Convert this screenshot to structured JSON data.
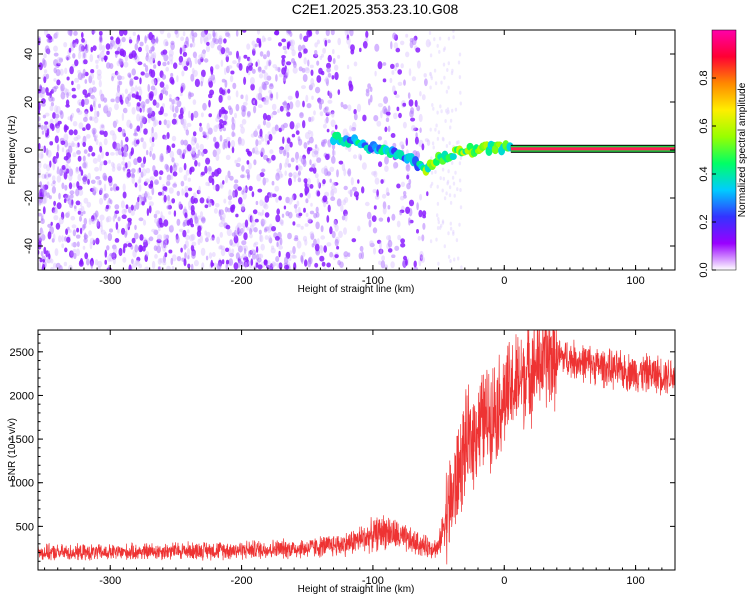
{
  "title": "C2E1.2025.353.23.10.G08",
  "chart_data": [
    {
      "type": "heatmap",
      "title": "C2E1.2025.353.23.10.G08",
      "xlabel": "Height of straight line (km)",
      "ylabel": "Frequency (Hz)",
      "xlim": [
        -355,
        130
      ],
      "ylim": [
        -50,
        50
      ],
      "x_ticks": [
        -300,
        -200,
        -100,
        0,
        100
      ],
      "y_ticks": [
        -40,
        -20,
        0,
        20,
        40
      ],
      "tick_labels_x": [
        "-300",
        "-200",
        "-100",
        "0",
        "100"
      ],
      "tick_labels_y": [
        "-40",
        "-20",
        "0",
        "20",
        "40"
      ],
      "noise_region_km": [
        -355,
        -57
      ],
      "signal_track": {
        "x_km": [
          -130,
          -110,
          -95,
          -80,
          -68,
          -60,
          -50,
          -40,
          -30,
          -20,
          -10,
          0,
          10,
          130
        ],
        "freq_hz": [
          5,
          3,
          0,
          -2,
          -5,
          -8,
          -4,
          -2,
          0,
          0,
          1,
          1,
          0.5,
          0.5
        ]
      },
      "colorbar": {
        "label": "Normalized spectral amplitude",
        "range": [
          0,
          1
        ],
        "ticks": [
          0.0,
          0.2,
          0.4,
          0.6,
          0.8
        ],
        "tick_labels": [
          "0.0",
          "0.2",
          "0.4",
          "0.6",
          "0.8"
        ],
        "colormap": [
          "#ffffff",
          "#9900ff",
          "#3333ff",
          "#00ccff",
          "#00ff66",
          "#99ff00",
          "#ffee00",
          "#ff8800",
          "#ff0033",
          "#ff00aa"
        ]
      }
    },
    {
      "type": "line",
      "xlabel": "Height of straight line (km)",
      "ylabel": "SNR (10 * v/v)",
      "xlim": [
        -355,
        130
      ],
      "ylim": [
        0,
        2750
      ],
      "x_ticks": [
        -300,
        -200,
        -100,
        0,
        100
      ],
      "y_ticks": [
        500,
        1000,
        1500,
        2000,
        2500
      ],
      "tick_labels_x": [
        "-300",
        "-200",
        "-100",
        "0",
        "100"
      ],
      "tick_labels_y": [
        "500",
        "1000",
        "1500",
        "2000",
        "2500"
      ],
      "series": [
        {
          "name": "SNR",
          "color": "#ee3333",
          "x": [
            -355,
            -300,
            -250,
            -200,
            -150,
            -120,
            -100,
            -90,
            -80,
            -70,
            -60,
            -50,
            -45,
            -40,
            -35,
            -30,
            -25,
            -20,
            -10,
            0,
            10,
            20,
            30,
            40,
            50,
            60,
            70,
            80,
            90,
            100,
            110,
            120,
            130
          ],
          "y": [
            200,
            200,
            220,
            230,
            250,
            300,
            400,
            450,
            380,
            320,
            270,
            250,
            600,
            800,
            1100,
            1400,
            1500,
            1650,
            1800,
            1950,
            2150,
            2300,
            2400,
            2450,
            2420,
            2380,
            2350,
            2300,
            2280,
            2260,
            2250,
            2240,
            2230
          ]
        }
      ]
    }
  ]
}
